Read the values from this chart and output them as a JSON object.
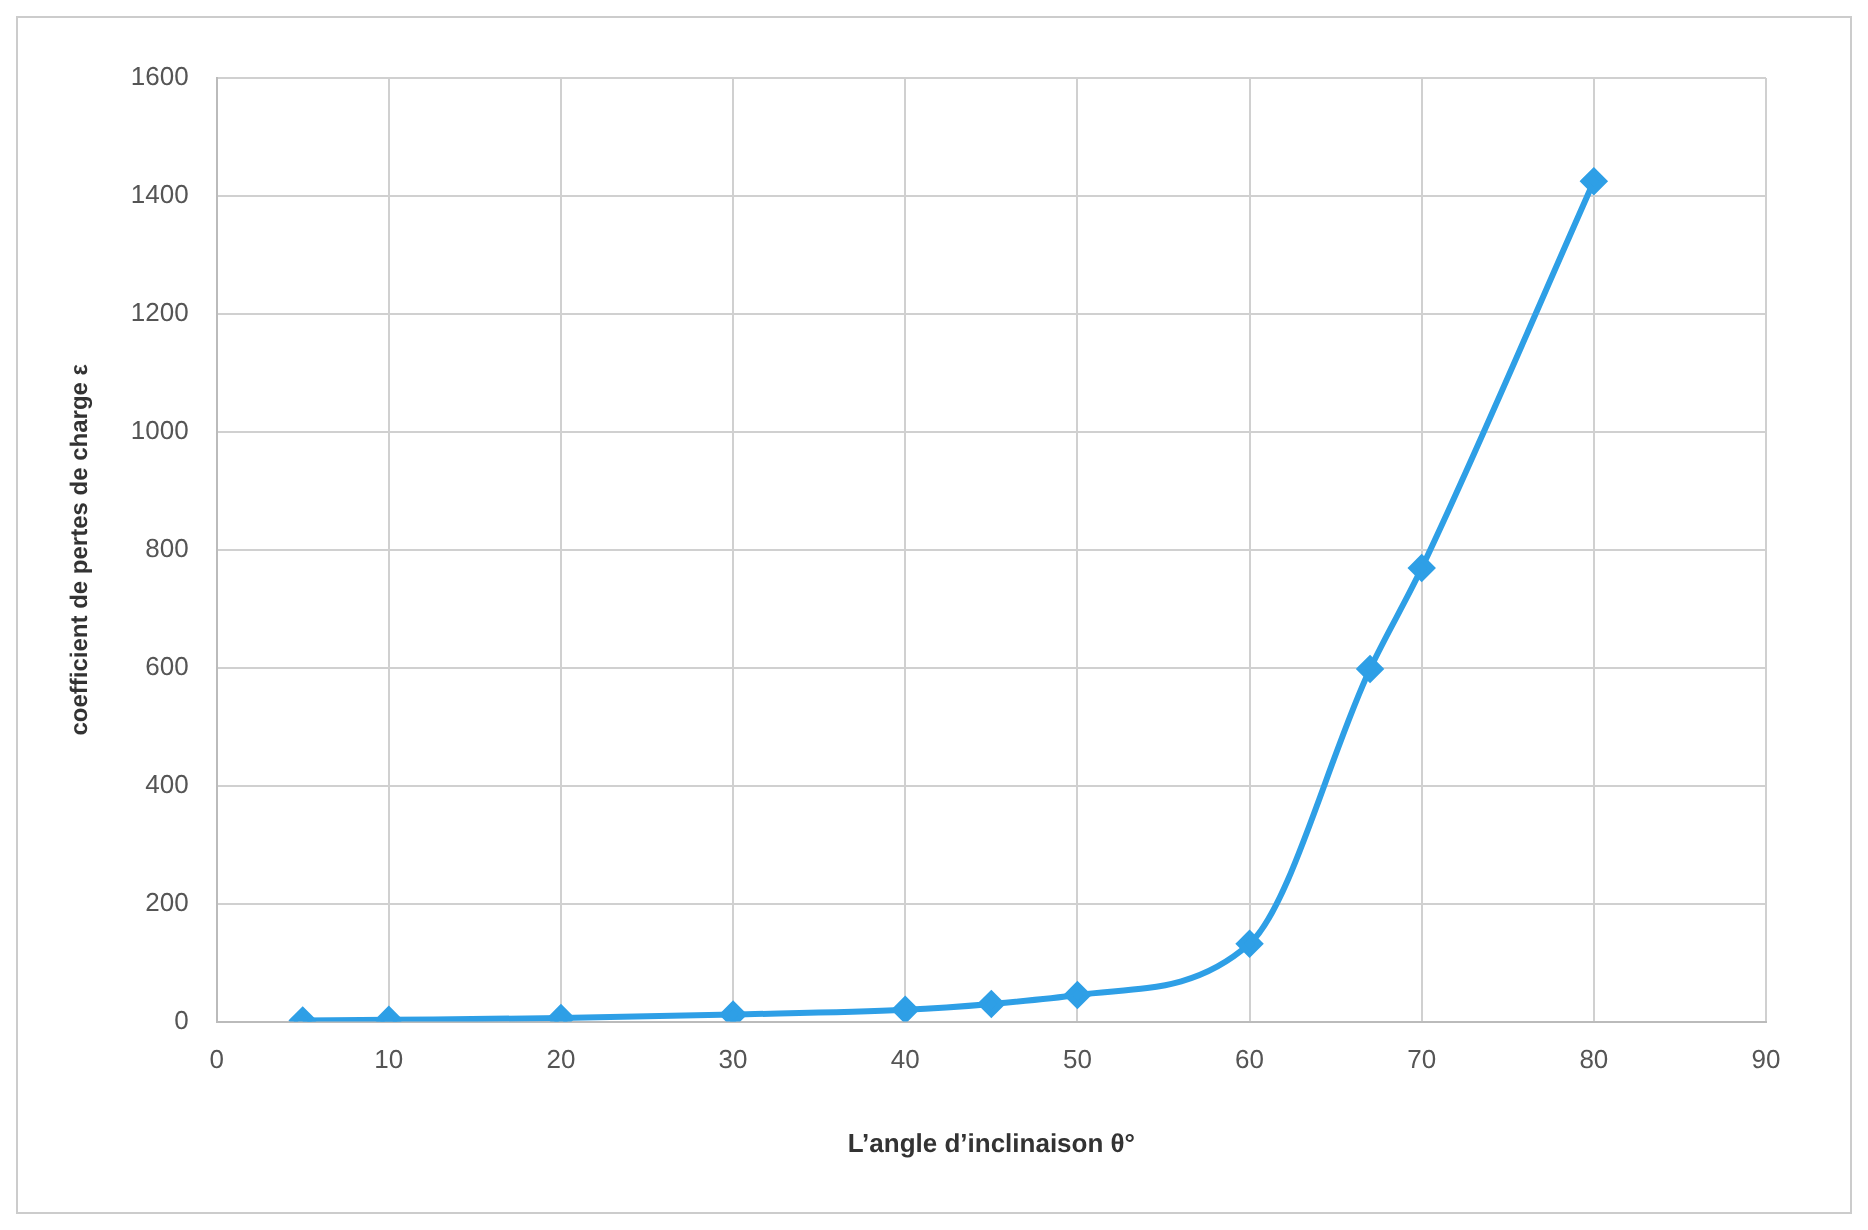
{
  "chart_data": {
    "type": "line",
    "xlabel": "L’angle d’inclinaison θ°",
    "ylabel": "coefficient de pertes de charge ε",
    "x": [
      5,
      10,
      20,
      30,
      40,
      45,
      50,
      60,
      67,
      70,
      80
    ],
    "series": [
      {
        "color": "#2e9fe6",
        "values": [
          2,
          3,
          6,
          12,
          20,
          30,
          45,
          132,
          598,
          769,
          1425
        ]
      }
    ],
    "xlim": [
      0,
      90
    ],
    "xticks": [
      0,
      10,
      20,
      30,
      40,
      50,
      60,
      70,
      80,
      90
    ],
    "ylim": [
      0,
      1600
    ],
    "yticks": [
      0,
      200,
      400,
      600,
      800,
      1000,
      1200,
      1400,
      1600
    ],
    "grid": true,
    "marker": "diamond",
    "line_style": "solid",
    "legend": false
  }
}
